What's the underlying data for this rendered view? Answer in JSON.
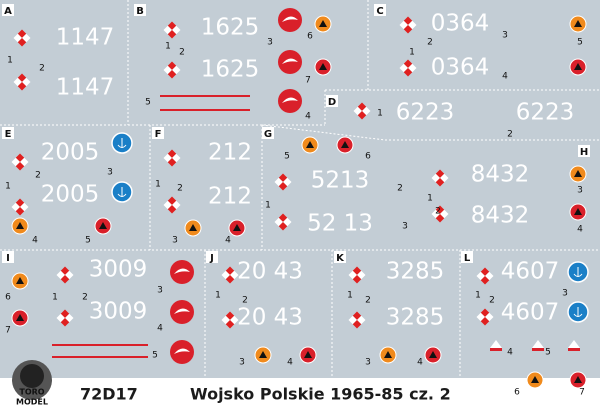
{
  "panels": [
    {
      "letter": "A",
      "codes": [
        "1147",
        "1147"
      ],
      "labels": [
        "1",
        "2"
      ]
    },
    {
      "letter": "B",
      "codes": [
        "1625",
        "1625"
      ],
      "labels": [
        "1",
        "2",
        "3",
        "6",
        "7",
        "5",
        "4"
      ]
    },
    {
      "letter": "C",
      "codes": [
        "0364",
        "0364"
      ],
      "labels": [
        "1",
        "2",
        "3",
        "4",
        "5"
      ]
    },
    {
      "letter": "D",
      "codes": [
        "6223",
        "6223"
      ],
      "labels": [
        "1",
        "2"
      ]
    },
    {
      "letter": "E",
      "codes": [
        "2005",
        "2005"
      ],
      "labels": [
        "1",
        "2",
        "3",
        "4",
        "5"
      ]
    },
    {
      "letter": "F",
      "codes": [
        "212",
        "212"
      ],
      "labels": [
        "1",
        "2",
        "3",
        "4"
      ]
    },
    {
      "letter": "G",
      "codes": [
        "5213",
        "52 13"
      ],
      "labels": [
        "5",
        "6",
        "1",
        "2",
        "3"
      ]
    },
    {
      "letter": "H",
      "codes": [
        "8432",
        "8432"
      ],
      "labels": [
        "1",
        "2",
        "3",
        "4"
      ]
    },
    {
      "letter": "I",
      "codes": [
        "3009",
        "3009"
      ],
      "labels": [
        "6",
        "1",
        "2",
        "3",
        "7",
        "4",
        "5"
      ]
    },
    {
      "letter": "J",
      "codes": [
        "20 43",
        "20 43"
      ],
      "labels": [
        "1",
        "2",
        "3",
        "4"
      ]
    },
    {
      "letter": "K",
      "codes": [
        "3285",
        "3285"
      ],
      "labels": [
        "1",
        "2",
        "3",
        "4"
      ]
    },
    {
      "letter": "L",
      "codes": [
        "4607",
        "4607"
      ],
      "labels": [
        "1",
        "2",
        "3",
        "4",
        "5",
        "6",
        "7"
      ]
    }
  ],
  "footer": {
    "code": "72D17",
    "title": "Wojsko Polskie 1965-85   cz. 2",
    "logo": [
      "TORO",
      "MODEL"
    ]
  }
}
